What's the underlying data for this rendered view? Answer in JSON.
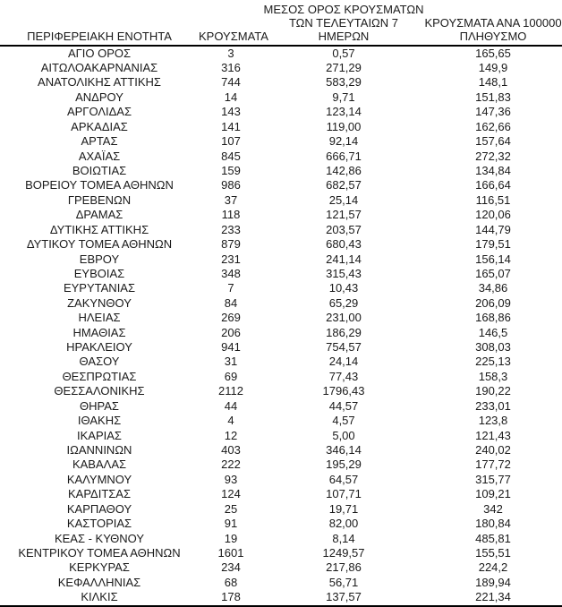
{
  "colors": {
    "text": "#1a1a1a",
    "border": "#000000",
    "background": "#ffffff"
  },
  "table": {
    "headers": {
      "region": {
        "label": "ΠΕΡΙΦΕΡΕΙΑΚΗ ΕΝΟΤΗΤΑ"
      },
      "cases": {
        "label": "ΚΡΟΥΣΜΑΤΑ"
      },
      "avg7": {
        "lines": [
          "ΜΕΣΟΣ ΟΡΟΣ ΚΡΟΥΣΜΑΤΩΝ",
          "ΤΩΝ ΤΕΛΕΥΤΑΙΩΝ 7",
          "ΗΜΕΡΩΝ"
        ]
      },
      "per100k": {
        "lines": [
          "ΚΡΟΥΣΜΑΤΑ ΑΝΑ 100000",
          "ΠΛΗΘΥΣΜΟ"
        ]
      }
    },
    "rows": [
      [
        "ΑΓΙΟ ΟΡΟΣ",
        "3",
        "0,57",
        "165,65"
      ],
      [
        "ΑΙΤΩΛΟΑΚΑΡΝΑΝΙΑΣ",
        "316",
        "271,29",
        "149,9"
      ],
      [
        "ΑΝΑΤΟΛΙΚΗΣ ΑΤΤΙΚΗΣ",
        "744",
        "583,29",
        "148,1"
      ],
      [
        "ΑΝΔΡΟΥ",
        "14",
        "9,71",
        "151,83"
      ],
      [
        "ΑΡΓΟΛΙΔΑΣ",
        "143",
        "123,14",
        "147,36"
      ],
      [
        "ΑΡΚΑΔΙΑΣ",
        "141",
        "119,00",
        "162,66"
      ],
      [
        "ΑΡΤΑΣ",
        "107",
        "92,14",
        "157,64"
      ],
      [
        "ΑΧΑΪΑΣ",
        "845",
        "666,71",
        "272,32"
      ],
      [
        "ΒΟΙΩΤΙΑΣ",
        "159",
        "142,86",
        "134,84"
      ],
      [
        "ΒΟΡΕΙΟΥ ΤΟΜΕΑ ΑΘΗΝΩΝ",
        "986",
        "682,57",
        "166,64"
      ],
      [
        "ΓΡΕΒΕΝΩΝ",
        "37",
        "25,14",
        "116,51"
      ],
      [
        "ΔΡΑΜΑΣ",
        "118",
        "121,57",
        "120,06"
      ],
      [
        "ΔΥΤΙΚΗΣ ΑΤΤΙΚΗΣ",
        "233",
        "203,57",
        "144,79"
      ],
      [
        "ΔΥΤΙΚΟΥ ΤΟΜΕΑ ΑΘΗΝΩΝ",
        "879",
        "680,43",
        "179,51"
      ],
      [
        "ΕΒΡΟΥ",
        "231",
        "241,14",
        "156,14"
      ],
      [
        "ΕΥΒΟΙΑΣ",
        "348",
        "315,43",
        "165,07"
      ],
      [
        "ΕΥΡΥΤΑΝΙΑΣ",
        "7",
        "10,43",
        "34,86"
      ],
      [
        "ΖΑΚΥΝΘΟΥ",
        "84",
        "65,29",
        "206,09"
      ],
      [
        "ΗΛΕΙΑΣ",
        "269",
        "231,00",
        "168,86"
      ],
      [
        "ΗΜΑΘΙΑΣ",
        "206",
        "186,29",
        "146,5"
      ],
      [
        "ΗΡΑΚΛΕΙΟΥ",
        "941",
        "754,57",
        "308,03"
      ],
      [
        "ΘΑΣΟΥ",
        "31",
        "24,14",
        "225,13"
      ],
      [
        "ΘΕΣΠΡΩΤΙΑΣ",
        "69",
        "77,43",
        "158,3"
      ],
      [
        "ΘΕΣΣΑΛΟΝΙΚΗΣ",
        "2112",
        "1796,43",
        "190,22"
      ],
      [
        "ΘΗΡΑΣ",
        "44",
        "44,57",
        "233,01"
      ],
      [
        "ΙΘΑΚΗΣ",
        "4",
        "4,57",
        "123,8"
      ],
      [
        "ΙΚΑΡΙΑΣ",
        "12",
        "5,00",
        "121,43"
      ],
      [
        "ΙΩΑΝΝΙΝΩΝ",
        "403",
        "346,14",
        "240,02"
      ],
      [
        "ΚΑΒΑΛΑΣ",
        "222",
        "195,29",
        "177,72"
      ],
      [
        "ΚΑΛΥΜΝΟΥ",
        "93",
        "64,57",
        "315,77"
      ],
      [
        "ΚΑΡΔΙΤΣΑΣ",
        "124",
        "107,71",
        "109,21"
      ],
      [
        "ΚΑΡΠΑΘΟΥ",
        "25",
        "19,71",
        "342"
      ],
      [
        "ΚΑΣΤΟΡΙΑΣ",
        "91",
        "82,00",
        "180,84"
      ],
      [
        "ΚΕΑΣ - ΚΥΘΝΟΥ",
        "19",
        "8,14",
        "485,81"
      ],
      [
        "ΚΕΝΤΡΙΚΟΥ ΤΟΜΕΑ ΑΘΗΝΩΝ",
        "1601",
        "1249,57",
        "155,51"
      ],
      [
        "ΚΕΡΚΥΡΑΣ",
        "234",
        "217,86",
        "224,2"
      ],
      [
        "ΚΕΦΑΛΛΗΝΙΑΣ",
        "68",
        "56,71",
        "189,94"
      ],
      [
        "ΚΙΛΚΙΣ",
        "178",
        "137,57",
        "221,34"
      ]
    ]
  }
}
